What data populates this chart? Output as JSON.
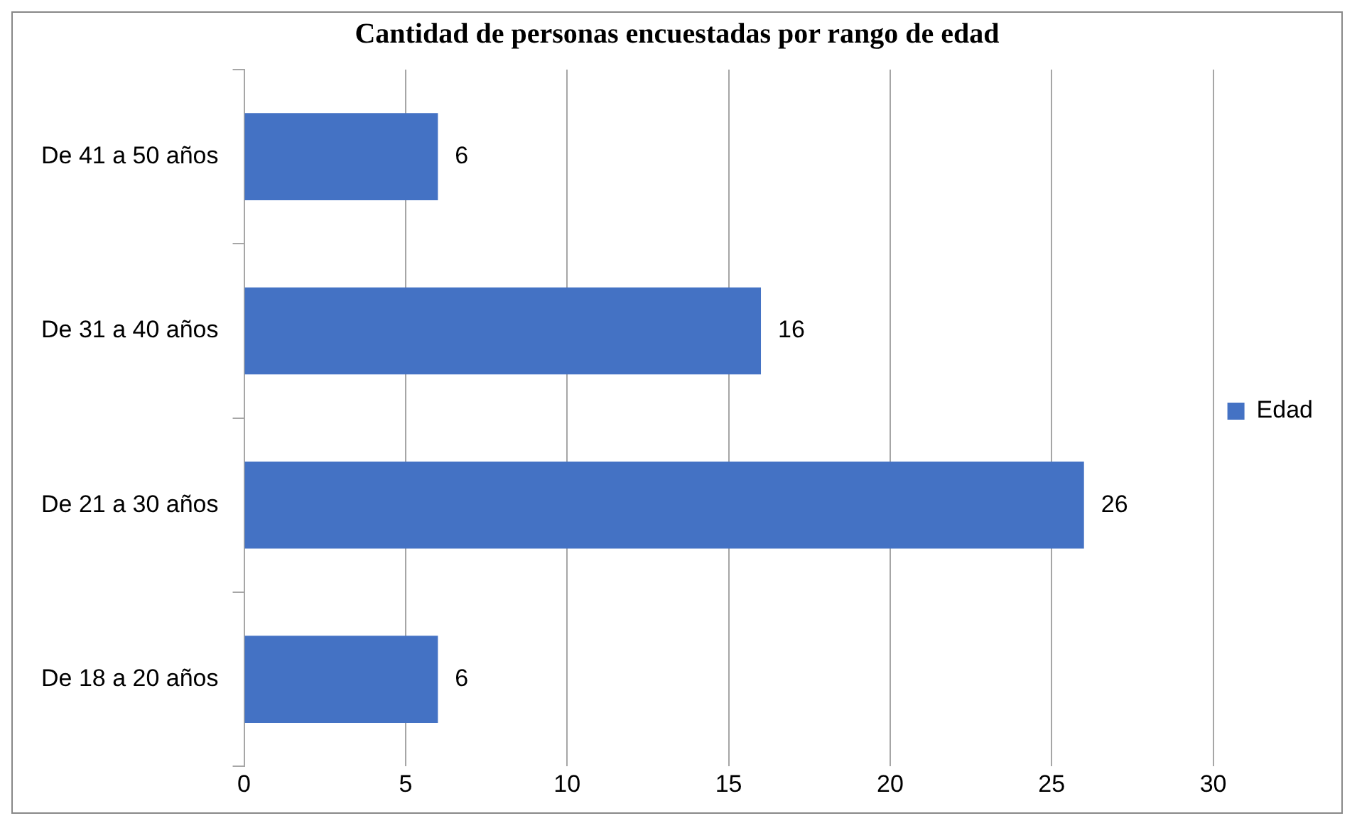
{
  "chart_data": {
    "type": "bar",
    "orientation": "horizontal",
    "title": "Cantidad de personas encuestadas por rango de edad",
    "categories": [
      "De 41 a 50 años",
      "De 31 a 40 años",
      "De 21 a 30 años",
      "De 18 a 20 años"
    ],
    "series": [
      {
        "name": "Edad",
        "color": "#4472c4",
        "values": [
          6,
          16,
          26,
          6
        ]
      }
    ],
    "xlim": [
      0,
      30
    ],
    "xticks": [
      0,
      5,
      10,
      15,
      20,
      25,
      30
    ],
    "grid": "x",
    "legend": "right",
    "data_labels": true
  }
}
